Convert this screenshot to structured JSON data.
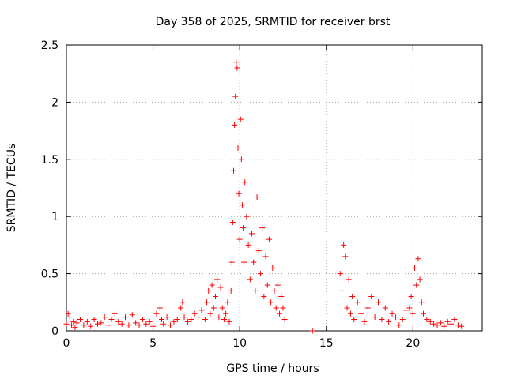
{
  "chart_data": {
    "type": "scatter",
    "title": "Day 358 of 2025, SRMTID for receiver brst",
    "xlabel": "GPS time / hours",
    "ylabel": "SRMTID / TECUs",
    "xlim": [
      0,
      24
    ],
    "ylim": [
      0,
      2.5
    ],
    "x_ticks": [
      0,
      5,
      10,
      15,
      20
    ],
    "y_ticks": [
      0,
      0.5,
      1,
      1.5,
      2,
      2.5
    ],
    "grid": true,
    "marker": "+",
    "colors": {
      "series": "#ff0000",
      "axis": "#000000",
      "grid": "#a0a0a0"
    },
    "series": [
      {
        "name": "SRMTID",
        "x": [
          0.0,
          0.1,
          0.2,
          0.3,
          0.4,
          0.5,
          0.6,
          0.8,
          1.0,
          1.2,
          1.4,
          1.6,
          1.8,
          2.0,
          2.2,
          2.4,
          2.6,
          2.8,
          3.0,
          3.2,
          3.4,
          3.6,
          3.8,
          4.0,
          4.2,
          4.4,
          4.6,
          4.8,
          5.0,
          5.2,
          5.4,
          5.5,
          5.6,
          5.8,
          6.0,
          6.2,
          6.4,
          6.6,
          6.7,
          6.8,
          7.0,
          7.2,
          7.4,
          7.6,
          7.8,
          8.0,
          8.1,
          8.2,
          8.3,
          8.4,
          8.5,
          8.6,
          8.7,
          8.8,
          8.9,
          9.0,
          9.1,
          9.2,
          9.3,
          9.4,
          9.5,
          9.55,
          9.6,
          9.65,
          9.7,
          9.75,
          9.8,
          9.85,
          9.9,
          9.95,
          10.0,
          10.05,
          10.1,
          10.15,
          10.2,
          10.25,
          10.3,
          10.4,
          10.5,
          10.6,
          10.7,
          10.8,
          10.9,
          11.0,
          11.1,
          11.2,
          11.3,
          11.4,
          11.5,
          11.6,
          11.7,
          11.8,
          11.9,
          12.0,
          12.1,
          12.2,
          12.3,
          12.4,
          12.5,
          12.6,
          14.2,
          15.8,
          15.9,
          16.0,
          16.1,
          16.2,
          16.3,
          16.4,
          16.5,
          16.6,
          16.8,
          17.0,
          17.2,
          17.4,
          17.6,
          17.8,
          18.0,
          18.2,
          18.4,
          18.6,
          18.8,
          19.0,
          19.2,
          19.4,
          19.6,
          19.8,
          19.9,
          20.0,
          20.1,
          20.2,
          20.3,
          20.4,
          20.5,
          20.6,
          20.8,
          21.0,
          21.2,
          21.4,
          21.6,
          21.8,
          22.0,
          22.2,
          22.4,
          22.6,
          22.8
        ],
        "y": [
          0.06,
          0.15,
          0.12,
          0.05,
          0.08,
          0.03,
          0.07,
          0.1,
          0.05,
          0.08,
          0.04,
          0.1,
          0.06,
          0.07,
          0.12,
          0.05,
          0.1,
          0.15,
          0.08,
          0.06,
          0.12,
          0.05,
          0.14,
          0.07,
          0.05,
          0.1,
          0.06,
          0.08,
          0.04,
          0.15,
          0.2,
          0.1,
          0.06,
          0.12,
          0.05,
          0.08,
          0.1,
          0.2,
          0.25,
          0.12,
          0.08,
          0.1,
          0.15,
          0.12,
          0.18,
          0.1,
          0.25,
          0.35,
          0.15,
          0.4,
          0.2,
          0.3,
          0.45,
          0.12,
          0.38,
          0.2,
          0.1,
          0.15,
          0.25,
          0.08,
          0.35,
          0.6,
          0.95,
          1.4,
          1.8,
          2.05,
          2.35,
          2.3,
          1.6,
          1.2,
          0.8,
          1.85,
          1.5,
          1.1,
          0.9,
          0.6,
          1.3,
          1.0,
          0.75,
          0.45,
          0.85,
          0.6,
          0.35,
          1.17,
          0.7,
          0.5,
          0.9,
          0.3,
          0.65,
          0.4,
          0.8,
          0.25,
          0.55,
          0.35,
          0.2,
          0.4,
          0.15,
          0.3,
          0.2,
          0.1,
          0.0,
          0.5,
          0.35,
          0.75,
          0.65,
          0.2,
          0.45,
          0.15,
          0.3,
          0.1,
          0.25,
          0.15,
          0.08,
          0.2,
          0.3,
          0.12,
          0.25,
          0.1,
          0.2,
          0.08,
          0.15,
          0.12,
          0.05,
          0.1,
          0.18,
          0.2,
          0.3,
          0.15,
          0.55,
          0.4,
          0.63,
          0.45,
          0.25,
          0.15,
          0.1,
          0.08,
          0.06,
          0.05,
          0.07,
          0.04,
          0.08,
          0.06,
          0.1,
          0.05,
          0.04
        ]
      }
    ]
  }
}
